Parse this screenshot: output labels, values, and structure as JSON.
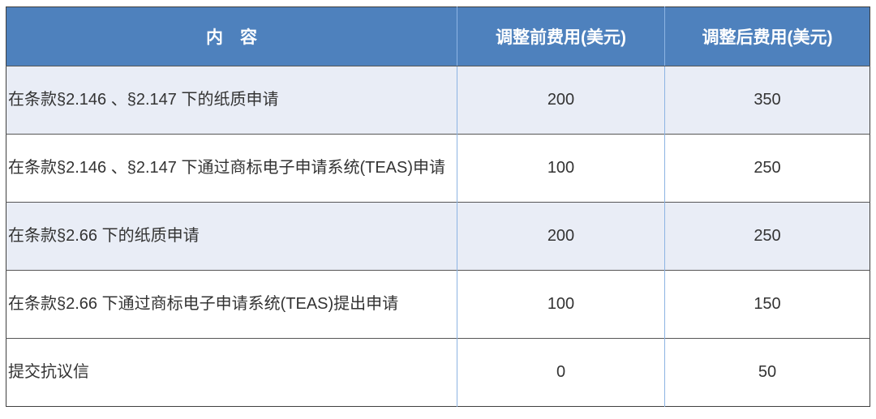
{
  "table": {
    "headers": [
      {
        "label": "内　容"
      },
      {
        "label": "调整前费用(美元)"
      },
      {
        "label": "调整后费用(美元)"
      }
    ],
    "rows": [
      {
        "content": "在条款§2.146 、§2.147 下的纸质申请",
        "before": "200",
        "after": "350",
        "shaded": true
      },
      {
        "content": "在条款§2.146 、§2.147 下通过商标电子申请系统(TEAS)申请",
        "before": "100",
        "after": "250",
        "shaded": false
      },
      {
        "content": "在条款§2.66 下的纸质申请",
        "before": "200",
        "after": "250",
        "shaded": true
      },
      {
        "content": "在条款§2.66 下通过商标电子申请系统(TEAS)提出申请",
        "before": "100",
        "after": "150",
        "shaded": false
      },
      {
        "content": "提交抗议信",
        "before": "0",
        "after": "50",
        "shaded": false
      }
    ]
  },
  "colors": {
    "header_bg": "#4e81bd",
    "header_text": "#ffffff",
    "shaded_row_bg": "#e9edf6",
    "white_row_bg": "#ffffff",
    "column_divider": "#8db4e3",
    "row_divider": "#565656",
    "outer_border": "#3f3f3f",
    "body_text": "#333333"
  }
}
